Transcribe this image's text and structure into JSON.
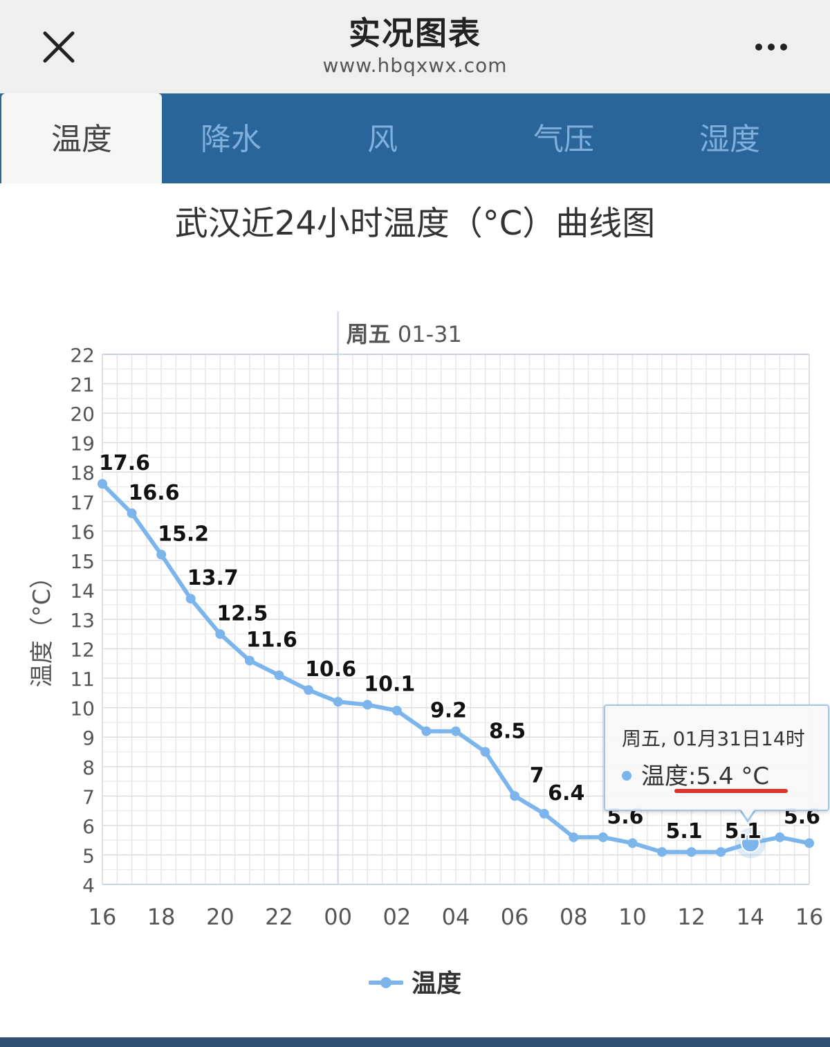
{
  "header": {
    "title": "实况图表",
    "url": "www.hbqxwx.com",
    "close_icon": "close-icon",
    "more_icon": "more-horizontal-icon"
  },
  "tabs": [
    {
      "label": "温度",
      "active": true
    },
    {
      "label": "降水",
      "active": false
    },
    {
      "label": "风",
      "active": false
    },
    {
      "label": "气压",
      "active": false
    },
    {
      "label": "湿度",
      "active": false
    }
  ],
  "chart_title": "武汉近24小时温度（°C）曲线图",
  "tooltip": {
    "header": "周五, 01月31日14时",
    "series_label": "温度",
    "value_text": ":5.4 °C"
  },
  "legend": {
    "label": "温度"
  },
  "colors": {
    "series": "#7cb5ec",
    "tab_bar": "#2a6599",
    "tab_inactive_text": "#7fb0dd",
    "underline": "#d9362b"
  },
  "chart_data": {
    "type": "line",
    "ylabel": "温度（°C）",
    "xlabel": "",
    "ylim": [
      4,
      22
    ],
    "yticks": [
      "4",
      "5",
      "6",
      "7",
      "8",
      "9",
      "10",
      "11",
      "12",
      "13",
      "14",
      "15",
      "16",
      "17",
      "18",
      "19",
      "20",
      "21",
      "22"
    ],
    "xticks": [
      "16",
      "18",
      "20",
      "22",
      "00",
      "02",
      "04",
      "06",
      "08",
      "10",
      "12",
      "14",
      "16"
    ],
    "day_marker": {
      "label_bold": "周五",
      "label_rest": " 01-31",
      "at_hour_label": "00"
    },
    "grid": true,
    "legend_position": "bottom-center",
    "series": [
      {
        "name": "温度",
        "x": [
          "16",
          "17",
          "18",
          "19",
          "20",
          "21",
          "22",
          "23",
          "00",
          "01",
          "02",
          "03",
          "04",
          "05",
          "06",
          "07",
          "08",
          "09",
          "10",
          "11",
          "12",
          "13",
          "14",
          "15",
          "16"
        ],
        "values": [
          17.6,
          16.6,
          15.2,
          13.7,
          12.5,
          11.6,
          11.1,
          10.6,
          10.2,
          10.1,
          9.9,
          9.2,
          9.2,
          8.5,
          7.0,
          6.4,
          5.6,
          5.6,
          5.4,
          5.1,
          5.1,
          5.1,
          5.4,
          5.6,
          5.4
        ],
        "data_labels": [
          "17.6",
          "16.6",
          "15.2",
          "13.7",
          "12.5",
          "11.6",
          "",
          "10.6",
          "",
          "10.1",
          "",
          "9.2",
          "",
          "8.5",
          "7",
          "6.4",
          "",
          "5.6",
          "",
          "5.1",
          "",
          "5.1",
          "",
          "5.6",
          ""
        ]
      }
    ],
    "highlighted_point": {
      "x": "14",
      "value": 5.4
    }
  }
}
